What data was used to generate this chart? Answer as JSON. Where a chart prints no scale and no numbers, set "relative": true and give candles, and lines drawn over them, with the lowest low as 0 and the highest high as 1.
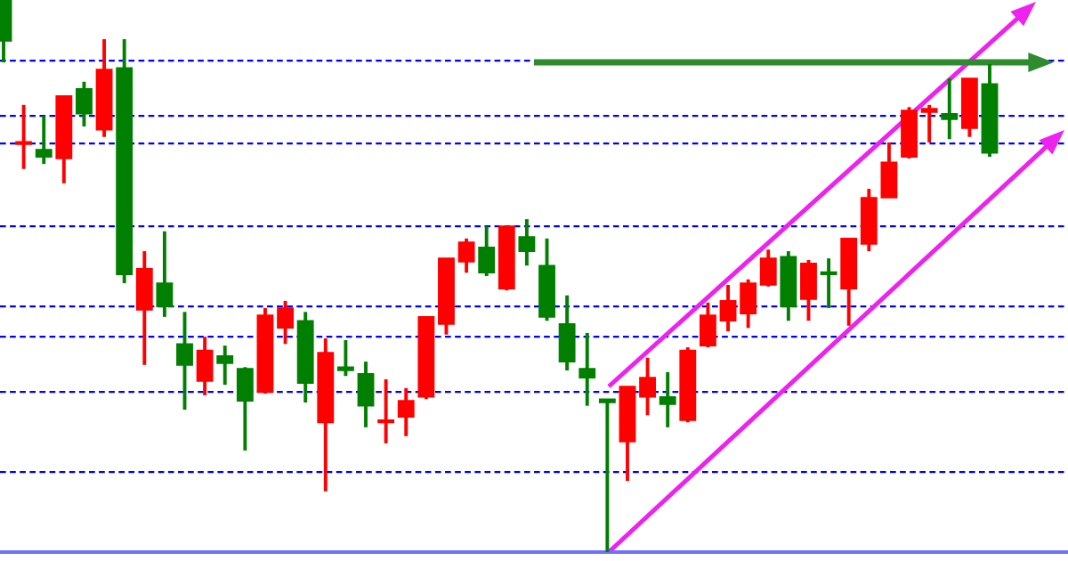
{
  "chart_data": {
    "type": "candlestick",
    "relative": true,
    "categories": [
      null,
      null,
      null,
      null,
      null,
      null,
      null,
      null,
      null,
      null,
      null,
      null,
      null,
      null,
      null,
      null,
      null,
      null,
      null,
      null,
      null,
      null,
      null,
      null,
      null,
      null,
      null,
      null,
      null,
      null,
      null,
      null,
      null,
      null,
      null,
      null,
      null,
      null,
      null,
      null,
      null,
      null,
      null,
      null,
      null,
      null,
      null,
      null,
      null,
      null
    ],
    "ohlc": [
      [
        1.0,
        1.0,
        0.887,
        0.926
      ],
      [
        0.739,
        0.81,
        0.694,
        0.742
      ],
      [
        0.729,
        0.79,
        0.703,
        0.716
      ],
      [
        0.713,
        0.826,
        0.668,
        0.826
      ],
      [
        0.839,
        0.852,
        0.771,
        0.794
      ],
      [
        0.765,
        0.929,
        0.752,
        0.874
      ],
      [
        0.877,
        0.929,
        0.487,
        0.503
      ],
      [
        0.439,
        0.545,
        0.339,
        0.513
      ],
      [
        0.487,
        0.581,
        0.426,
        0.445
      ],
      [
        0.377,
        0.435,
        0.258,
        0.339
      ],
      [
        0.31,
        0.39,
        0.284,
        0.365
      ],
      [
        0.355,
        0.374,
        0.303,
        0.342
      ],
      [
        0.332,
        0.335,
        0.184,
        0.274
      ],
      [
        0.29,
        0.442,
        0.287,
        0.429
      ],
      [
        0.406,
        0.455,
        0.377,
        0.442
      ],
      [
        0.419,
        0.435,
        0.271,
        0.306
      ],
      [
        0.235,
        0.387,
        0.11,
        0.361
      ],
      [
        0.335,
        0.384,
        0.319,
        0.329
      ],
      [
        0.323,
        0.345,
        0.226,
        0.265
      ],
      [
        0.235,
        0.313,
        0.197,
        0.239
      ],
      [
        0.245,
        0.297,
        0.21,
        0.274
      ],
      [
        0.281,
        0.426,
        0.277,
        0.426
      ],
      [
        0.413,
        0.532,
        0.394,
        0.532
      ],
      [
        0.526,
        0.568,
        0.506,
        0.561
      ],
      [
        0.552,
        0.59,
        0.5,
        0.506
      ],
      [
        0.477,
        0.59,
        0.474,
        0.59
      ],
      [
        0.571,
        0.603,
        0.519,
        0.545
      ],
      [
        0.519,
        0.568,
        0.419,
        0.426
      ],
      [
        0.413,
        0.465,
        0.329,
        0.345
      ],
      [
        0.332,
        0.397,
        0.265,
        0.316
      ],
      [
        0.277,
        0.277,
        0.0,
        0.271
      ],
      [
        0.2,
        0.3,
        0.129,
        0.3
      ],
      [
        0.281,
        0.352,
        0.248,
        0.316
      ],
      [
        0.281,
        0.326,
        0.226,
        0.268
      ],
      [
        0.239,
        0.371,
        0.235,
        0.365
      ],
      [
        0.374,
        0.452,
        0.371,
        0.429
      ],
      [
        0.419,
        0.484,
        0.4,
        0.455
      ],
      [
        0.432,
        0.494,
        0.406,
        0.487
      ],
      [
        0.484,
        0.548,
        0.481,
        0.532
      ],
      [
        0.535,
        0.545,
        0.419,
        0.445
      ],
      [
        0.458,
        0.529,
        0.419,
        0.523
      ],
      [
        0.506,
        0.532,
        0.442,
        0.503
      ],
      [
        0.477,
        0.568,
        0.41,
        0.568
      ],
      [
        0.558,
        0.658,
        0.545,
        0.642
      ],
      [
        0.642,
        0.742,
        0.642,
        0.706
      ],
      [
        0.716,
        0.806,
        0.713,
        0.8
      ],
      [
        0.797,
        0.81,
        0.742,
        0.803
      ],
      [
        0.794,
        0.858,
        0.748,
        0.784
      ],
      [
        0.768,
        0.858,
        0.752,
        0.858
      ],
      [
        0.848,
        0.884,
        0.716,
        0.723
      ]
    ],
    "colors": [
      "#007f00",
      "#ff0000",
      "#007f00",
      "#ff0000",
      "#007f00",
      "#ff0000",
      "#007f00",
      "#ff0000",
      "#007f00",
      "#007f00",
      "#ff0000",
      "#007f00",
      "#007f00",
      "#ff0000",
      "#ff0000",
      "#007f00",
      "#ff0000",
      "#007f00",
      "#007f00",
      "#ff0000",
      "#ff0000",
      "#ff0000",
      "#ff0000",
      "#ff0000",
      "#007f00",
      "#ff0000",
      "#007f00",
      "#007f00",
      "#007f00",
      "#007f00",
      "#007f00",
      "#ff0000",
      "#ff0000",
      "#007f00",
      "#ff0000",
      "#ff0000",
      "#ff0000",
      "#ff0000",
      "#ff0000",
      "#007f00",
      "#ff0000",
      "#007f00",
      "#ff0000",
      "#ff0000",
      "#ff0000",
      "#ff0000",
      "#ff0000",
      "#007f00",
      "#ff0000",
      "#007f00"
    ],
    "ref_lines": [
      {
        "axis": "y",
        "value": 0.89,
        "color": "#0000ff",
        "line_style": "dashed"
      },
      {
        "axis": "y",
        "value": 0.79,
        "color": "#0000ff",
        "line_style": "dashed"
      },
      {
        "axis": "y",
        "value": 0.74,
        "color": "#0000ff",
        "line_style": "dashed"
      },
      {
        "axis": "y",
        "value": 0.59,
        "color": "#0000ff",
        "line_style": "dashed"
      },
      {
        "axis": "y",
        "value": 0.445,
        "color": "#0000ff",
        "line_style": "dashed"
      },
      {
        "axis": "y",
        "value": 0.39,
        "color": "#0000ff",
        "line_style": "dashed"
      },
      {
        "axis": "y",
        "value": 0.29,
        "color": "#0000ff",
        "line_style": "dashed"
      },
      {
        "axis": "y",
        "value": 0.145,
        "color": "#0000ff",
        "line_style": "dashed"
      }
    ]
  }
}
